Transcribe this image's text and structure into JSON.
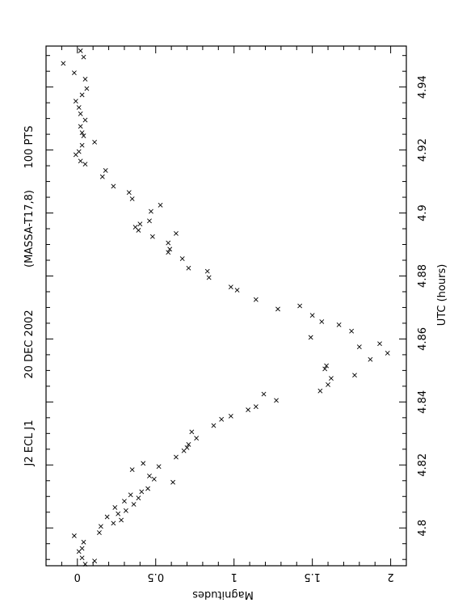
{
  "chart_data": {
    "type": "scatter",
    "orientation": "rotated-90-clockwise",
    "title_parts": [
      "J2 ECL J1",
      "20 DEC 2002",
      "(MASSA-T17,8)",
      "100 PTS"
    ],
    "xlabel": "UTC (hours)",
    "ylabel": "Magnitudes",
    "xlim": [
      4.788,
      4.953
    ],
    "ylim": [
      -0.2,
      2.1
    ],
    "x_ticks": [
      "4.8",
      "4.82",
      "4.84",
      "4.86",
      "4.88",
      "4.9",
      "4.92",
      "4.94"
    ],
    "y_ticks": [
      "0",
      "0.5",
      "1",
      "1.5",
      "2"
    ],
    "y_tick_values": [
      0,
      0.5,
      1,
      1.5,
      2
    ],
    "marker": "x",
    "grid": false,
    "points": [
      [
        4.7885,
        0.05
      ],
      [
        4.7905,
        0.03
      ],
      [
        4.7925,
        0.01
      ],
      [
        4.7895,
        0.11
      ],
      [
        4.7935,
        0.03
      ],
      [
        4.7955,
        0.04
      ],
      [
        4.7975,
        -0.02
      ],
      [
        4.7985,
        0.14
      ],
      [
        4.8005,
        0.15
      ],
      [
        4.8015,
        0.23
      ],
      [
        4.8025,
        0.28
      ],
      [
        4.8035,
        0.19
      ],
      [
        4.8045,
        0.26
      ],
      [
        4.8055,
        0.31
      ],
      [
        4.8065,
        0.24
      ],
      [
        4.8075,
        0.36
      ],
      [
        4.8085,
        0.3
      ],
      [
        4.8095,
        0.39
      ],
      [
        4.8105,
        0.34
      ],
      [
        4.8115,
        0.41
      ],
      [
        4.8125,
        0.45
      ],
      [
        4.8145,
        0.61
      ],
      [
        4.8155,
        0.49
      ],
      [
        4.8165,
        0.46
      ],
      [
        4.8185,
        0.35
      ],
      [
        4.8195,
        0.52
      ],
      [
        4.8205,
        0.42
      ],
      [
        4.8225,
        0.63
      ],
      [
        4.8245,
        0.68
      ],
      [
        4.8255,
        0.7
      ],
      [
        4.8265,
        0.71
      ],
      [
        4.8285,
        0.76
      ],
      [
        4.8305,
        0.73
      ],
      [
        4.8325,
        0.87
      ],
      [
        4.8345,
        0.92
      ],
      [
        4.8355,
        0.98
      ],
      [
        4.8375,
        1.09
      ],
      [
        4.8385,
        1.14
      ],
      [
        4.8405,
        1.27
      ],
      [
        4.8425,
        1.19
      ],
      [
        4.8435,
        1.55
      ],
      [
        4.8455,
        1.6
      ],
      [
        4.8475,
        1.62
      ],
      [
        4.8485,
        1.77
      ],
      [
        4.8505,
        1.58
      ],
      [
        4.8515,
        1.59
      ],
      [
        4.8535,
        1.87
      ],
      [
        4.8555,
        1.98
      ],
      [
        4.8575,
        1.8
      ],
      [
        4.8585,
        1.93
      ],
      [
        4.8605,
        1.49
      ],
      [
        4.8625,
        1.75
      ],
      [
        4.8645,
        1.67
      ],
      [
        4.8655,
        1.56
      ],
      [
        4.8675,
        1.5
      ],
      [
        4.8695,
        1.28
      ],
      [
        4.8705,
        1.42
      ],
      [
        4.8725,
        1.14
      ],
      [
        4.8755,
        1.02
      ],
      [
        4.8765,
        0.98
      ],
      [
        4.8795,
        0.84
      ],
      [
        4.8815,
        0.83
      ],
      [
        4.8825,
        0.71
      ],
      [
        4.8855,
        0.67
      ],
      [
        4.8875,
        0.58
      ],
      [
        4.8885,
        0.59
      ],
      [
        4.8905,
        0.58
      ],
      [
        4.8925,
        0.48
      ],
      [
        4.8935,
        0.63
      ],
      [
        4.8945,
        0.39
      ],
      [
        4.8955,
        0.37
      ],
      [
        4.8965,
        0.4
      ],
      [
        4.8975,
        0.46
      ],
      [
        4.9005,
        0.47
      ],
      [
        4.9025,
        0.53
      ],
      [
        4.9045,
        0.35
      ],
      [
        4.9065,
        0.33
      ],
      [
        4.9085,
        0.23
      ],
      [
        4.9115,
        0.16
      ],
      [
        4.9135,
        0.18
      ],
      [
        4.9155,
        0.05
      ],
      [
        4.9165,
        0.02
      ],
      [
        4.9185,
        -0.01
      ],
      [
        4.9195,
        0.01
      ],
      [
        4.9215,
        0.03
      ],
      [
        4.9225,
        0.11
      ],
      [
        4.9245,
        0.04
      ],
      [
        4.9255,
        0.03
      ],
      [
        4.9275,
        0.02
      ],
      [
        4.9295,
        0.05
      ],
      [
        4.9315,
        0.02
      ],
      [
        4.9335,
        0.01
      ],
      [
        4.9355,
        -0.01
      ],
      [
        4.9375,
        0.03
      ],
      [
        4.9395,
        0.06
      ],
      [
        4.9425,
        0.05
      ],
      [
        4.9445,
        -0.02
      ],
      [
        4.9475,
        -0.09
      ],
      [
        4.9495,
        0.04
      ],
      [
        4.9515,
        0.02
      ]
    ]
  }
}
